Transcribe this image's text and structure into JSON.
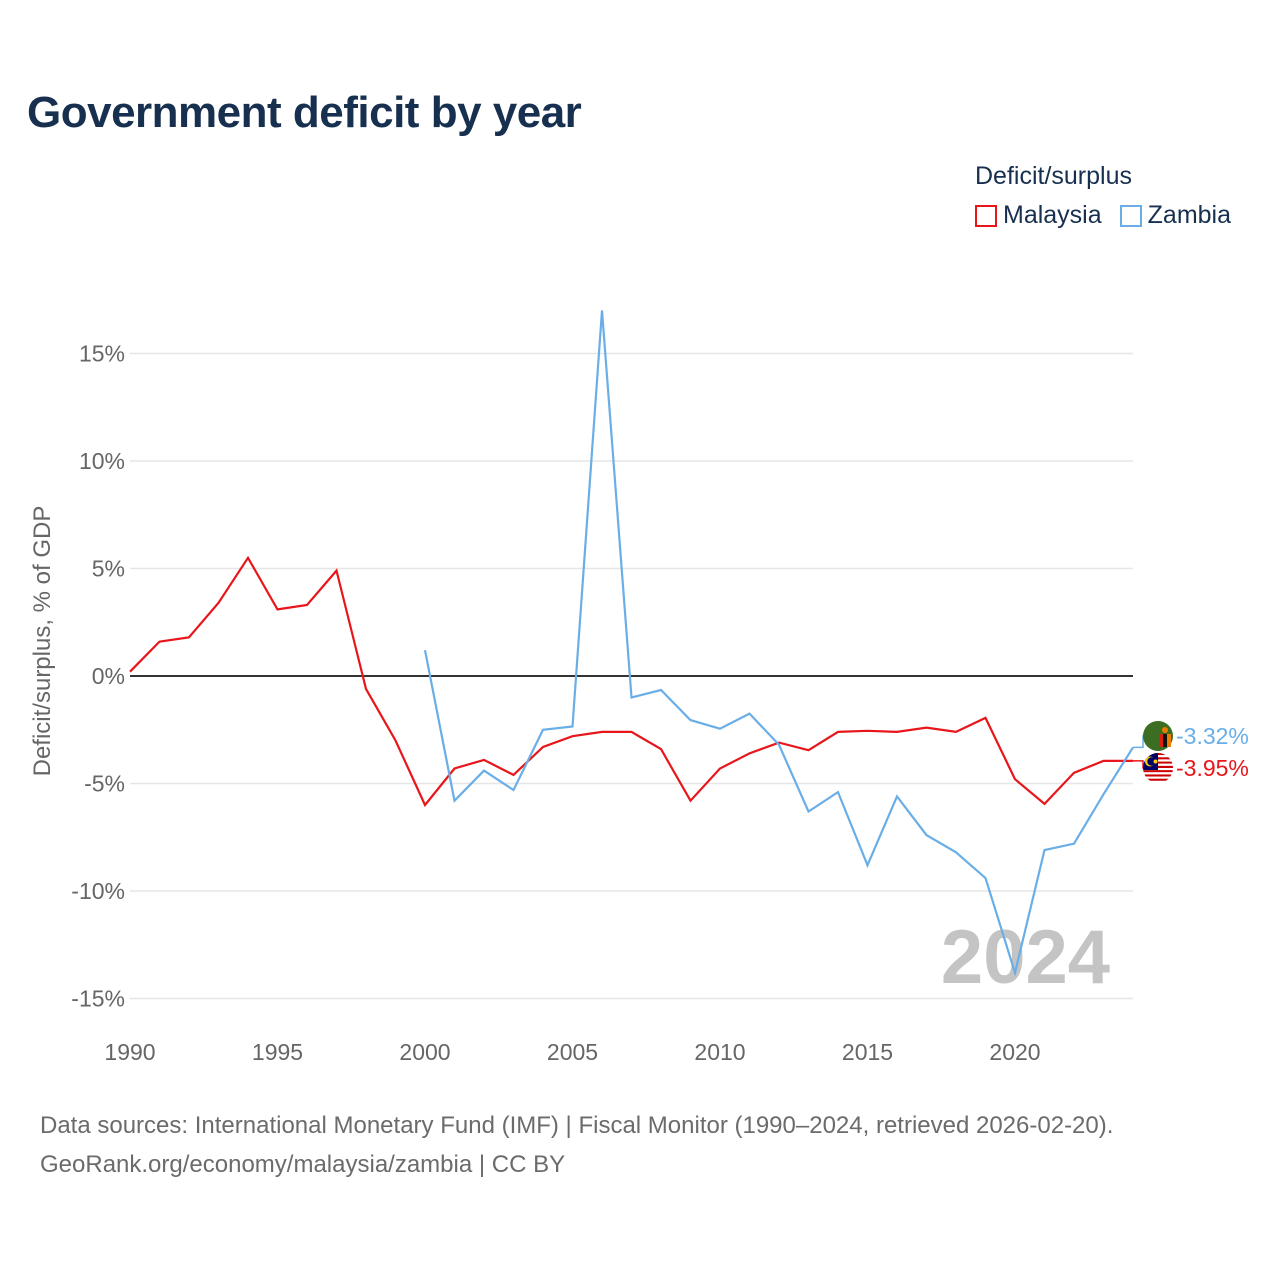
{
  "title": "Government deficit by year",
  "legend": {
    "title": "Deficit/surplus",
    "items": [
      {
        "name": "Malaysia",
        "color": "#e8161b"
      },
      {
        "name": "Zambia",
        "color": "#6aaee8"
      }
    ]
  },
  "watermark_year": "2024",
  "sources": {
    "line1": "Data sources: International Monetary Fund (IMF) | Fiscal Monitor (1990–2024, retrieved 2026-02-20).",
    "line2": "GeoRank.org/economy/malaysia/zambia | CC BY"
  },
  "chart_data": {
    "type": "line",
    "title": "Government deficit by year",
    "xlabel": "",
    "ylabel": "Deficit/surplus, % of GDP",
    "xlim": [
      1990,
      2024
    ],
    "ylim": [
      -15,
      17
    ],
    "x_ticks": [
      1990,
      1995,
      2000,
      2005,
      2010,
      2015,
      2020
    ],
    "x_tick_labels": [
      "1990",
      "1995",
      "2000",
      "2005",
      "2010",
      "2015",
      "2020"
    ],
    "y_ticks": [
      15,
      10,
      5,
      0,
      -5,
      -10,
      -15
    ],
    "y_tick_labels": [
      "15%",
      "10%",
      "5%",
      "0%",
      "-5%",
      "-10%",
      "-15%"
    ],
    "grid": true,
    "legend_position": "top-right",
    "series": [
      {
        "name": "Malaysia",
        "color": "#e8161b",
        "end_label": "-3.95%",
        "x": [
          1990,
          1991,
          1992,
          1993,
          1994,
          1995,
          1996,
          1997,
          1998,
          1999,
          2000,
          2001,
          2002,
          2003,
          2004,
          2005,
          2006,
          2007,
          2008,
          2009,
          2010,
          2011,
          2012,
          2013,
          2014,
          2015,
          2016,
          2017,
          2018,
          2019,
          2020,
          2021,
          2022,
          2023,
          2024
        ],
        "values": [
          0.2,
          1.6,
          1.8,
          3.4,
          5.5,
          3.1,
          3.3,
          4.9,
          -0.6,
          -3.0,
          -6.0,
          -4.3,
          -3.9,
          -4.6,
          -3.3,
          -2.8,
          -2.6,
          -2.6,
          -3.4,
          -5.8,
          -4.3,
          -3.6,
          -3.1,
          -3.45,
          -2.6,
          -2.55,
          -2.6,
          -2.4,
          -2.6,
          -1.95,
          -4.8,
          -5.95,
          -4.5,
          -3.95,
          -3.95
        ]
      },
      {
        "name": "Zambia",
        "color": "#6aaee8",
        "end_label": "-3.32%",
        "x": [
          2000,
          2001,
          2002,
          2003,
          2004,
          2005,
          2006,
          2007,
          2008,
          2009,
          2010,
          2011,
          2012,
          2013,
          2014,
          2015,
          2016,
          2017,
          2018,
          2019,
          2020,
          2021,
          2022,
          2023,
          2024
        ],
        "values": [
          1.2,
          -5.8,
          -4.4,
          -5.3,
          -2.5,
          -2.35,
          17.0,
          -1.0,
          -0.65,
          -2.05,
          -2.45,
          -1.75,
          -3.2,
          -6.3,
          -5.4,
          -8.8,
          -5.6,
          -7.4,
          -8.2,
          -9.4,
          -13.8,
          -8.1,
          -7.8,
          -5.5,
          -3.32
        ]
      }
    ]
  }
}
